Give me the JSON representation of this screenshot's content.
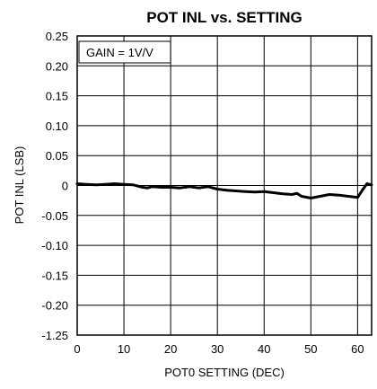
{
  "chart_data": {
    "type": "line",
    "title": "POT INL vs. SETTING",
    "xlabel": "POT0 SETTING (DEC)",
    "ylabel": "POT INL (LSB)",
    "annotation": "GAIN = 1V/V",
    "xlim": [
      0,
      63
    ],
    "x_ticks": [
      0,
      10,
      20,
      30,
      40,
      50,
      60
    ],
    "x_tick_labels": [
      "0",
      "10",
      "20",
      "30",
      "40",
      "50",
      "60"
    ],
    "y_tick_labels": [
      "0.25",
      "0.20",
      "0.15",
      "0.10",
      "0.05",
      "0",
      "-0.05",
      "-0.10",
      "-0.15",
      "-0.20",
      "-1.25"
    ],
    "grid": true,
    "series": [
      {
        "x": [
          0,
          2,
          4,
          6,
          8,
          10,
          12,
          14,
          15,
          16,
          18,
          20,
          22,
          24,
          26,
          28,
          30,
          32,
          34,
          36,
          38,
          40,
          42,
          44,
          46,
          47,
          48,
          50,
          52,
          54,
          56,
          58,
          60,
          61,
          62,
          63
        ],
        "y": [
          0.003,
          0.002,
          0.001,
          0.002,
          0.003,
          0.002,
          0.001,
          -0.003,
          -0.004,
          -0.002,
          -0.003,
          -0.003,
          -0.004,
          -0.002,
          -0.004,
          -0.002,
          -0.006,
          -0.008,
          -0.009,
          -0.01,
          -0.011,
          -0.01,
          -0.012,
          -0.014,
          -0.015,
          -0.013,
          -0.018,
          -0.021,
          -0.018,
          -0.015,
          -0.016,
          -0.018,
          -0.02,
          -0.008,
          0.003,
          0.001
        ],
        "color": "#000000"
      }
    ]
  }
}
